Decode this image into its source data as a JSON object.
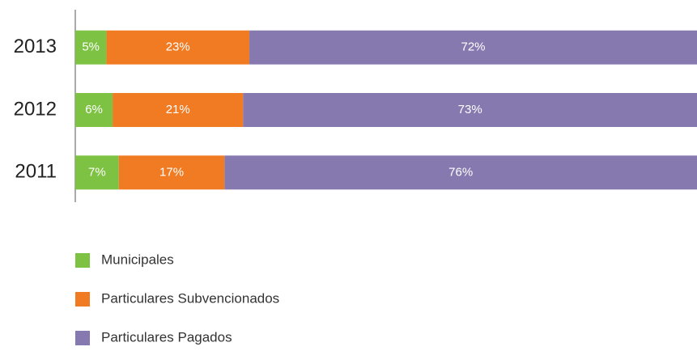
{
  "chart_data": {
    "type": "stacked-barh",
    "categories": [
      "2013",
      "2012",
      "2011"
    ],
    "series": [
      {
        "name": "Municipales",
        "color": "#7dc242",
        "values": [
          5,
          6,
          7
        ],
        "value_labels": [
          "5%",
          "6%",
          "7%"
        ]
      },
      {
        "name": "Particulares Subvencionados",
        "color": "#f07b22",
        "values": [
          23,
          21,
          17
        ],
        "value_labels": [
          "23%",
          "21%",
          "17%"
        ]
      },
      {
        "name": "Particulares Pagados",
        "color": "#8679b0",
        "values": [
          72,
          73,
          76
        ],
        "value_labels": [
          "72%",
          "73%",
          "76%"
        ]
      }
    ],
    "xlim": [
      0,
      100
    ]
  }
}
